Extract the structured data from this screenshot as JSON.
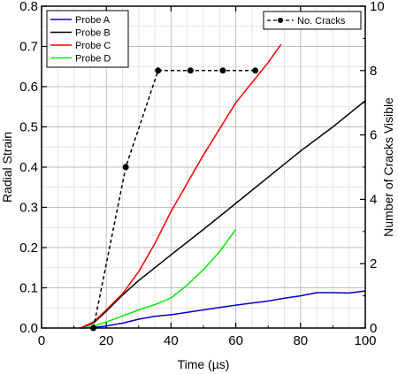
{
  "chart_data": {
    "type": "line",
    "title": "",
    "xlabel": "Time (µs)",
    "ylabel": "Radial Strain",
    "y2label": "Number of Cracks Visible",
    "xlim": [
      0,
      100
    ],
    "ylim": [
      0,
      0.8
    ],
    "y2lim": [
      0,
      10
    ],
    "grid": true,
    "x_ticks": [
      0,
      20,
      40,
      60,
      80,
      100
    ],
    "y_ticks": [
      0,
      0.1,
      0.2,
      0.3,
      0.4,
      0.5,
      0.6,
      0.7,
      0.8
    ],
    "y2_ticks": [
      0,
      2,
      4,
      6,
      8,
      10
    ],
    "x_tick_labels": [
      "0",
      "20",
      "40",
      "60",
      "80",
      "100"
    ],
    "y_tick_labels": [
      "0.0",
      "0.1",
      "0.2",
      "0.3",
      "0.4",
      "0.5",
      "0.6",
      "0.7",
      "0.8"
    ],
    "y2_tick_labels": [
      "0",
      "2",
      "4",
      "6",
      "8",
      "10"
    ],
    "legend_position": "top-left",
    "legend2_position": "top-right",
    "series": [
      {
        "name": "Probe A",
        "color": "#0000cc",
        "axis": "left",
        "x": [
          12,
          16,
          20,
          25,
          30,
          35,
          40,
          45,
          50,
          55,
          60,
          65,
          70,
          75,
          80,
          85,
          90,
          95,
          100
        ],
        "y": [
          0,
          0.001,
          0.005,
          0.012,
          0.022,
          0.029,
          0.033,
          0.039,
          0.045,
          0.051,
          0.057,
          0.062,
          0.067,
          0.074,
          0.08,
          0.088,
          0.088,
          0.087,
          0.092
        ]
      },
      {
        "name": "Probe B",
        "color": "#000000",
        "axis": "left",
        "x": [
          12,
          16,
          20,
          25,
          30,
          35,
          40,
          50,
          60,
          70,
          80,
          90,
          100
        ],
        "y": [
          0,
          0.012,
          0.042,
          0.082,
          0.118,
          0.15,
          0.182,
          0.245,
          0.31,
          0.375,
          0.44,
          0.5,
          0.565
        ]
      },
      {
        "name": "Probe C",
        "color": "#ff0000",
        "axis": "left",
        "x": [
          12,
          16,
          20,
          25,
          30,
          35,
          40,
          50,
          60,
          70,
          74
        ],
        "y": [
          0,
          0.015,
          0.045,
          0.085,
          0.14,
          0.21,
          0.29,
          0.43,
          0.56,
          0.66,
          0.705
        ]
      },
      {
        "name": "Probe D",
        "color": "#00ee00",
        "axis": "left",
        "x": [
          12,
          16,
          20,
          25,
          30,
          35,
          40,
          45,
          50,
          55,
          60
        ],
        "y": [
          0,
          0.004,
          0.015,
          0.03,
          0.045,
          0.058,
          0.075,
          0.107,
          0.145,
          0.19,
          0.245
        ]
      },
      {
        "name": "No. Cracks",
        "color": "#000000",
        "axis": "right",
        "style": "dashed-markers",
        "x": [
          16,
          26,
          36,
          46,
          56,
          66
        ],
        "y": [
          0,
          5,
          8,
          8,
          8,
          8
        ]
      }
    ]
  }
}
